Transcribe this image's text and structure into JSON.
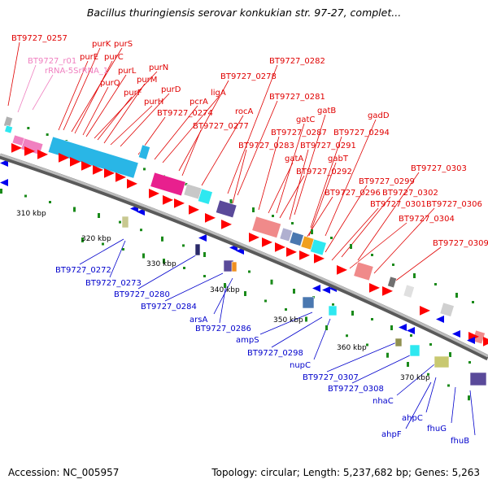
{
  "title": "Bacillus thuringiensis serovar konkukian str. 97-27, complet...",
  "footer": {
    "accession": "Accession: NC_005957",
    "stats": "Topology: circular; Length: 5,237,682 bp; Genes: 5,263"
  },
  "colors": {
    "forward_label": "#e00000",
    "reverse_label": "#0000cc",
    "rna_label": "#f080c0",
    "backbone": "#8c8c8c",
    "tick": "#1a8a1a"
  },
  "scale_labels": [
    "310 kbp",
    "320 kbp",
    "330 kbp",
    "340 kbp",
    "350 kbp",
    "360 kbp",
    "370 kbp"
  ],
  "forward_labels": [
    "BT9727_0257",
    "purK",
    "purS",
    "purE",
    "purC",
    "purL",
    "purN",
    "purQ",
    "purM",
    "purF",
    "purD",
    "purH",
    "ligA",
    "pcrA",
    "BT9727_0274",
    "BT9727_0278",
    "BT9727_0282",
    "rocA",
    "BT9727_0281",
    "BT9727_0277",
    "gatB",
    "gatC",
    "gadD",
    "BT9727_0287",
    "BT9727_0294",
    "BT9727_0283",
    "BT9727_0291",
    "gatA",
    "gabT",
    "BT9727_0292",
    "BT9727_0303",
    "BT9727_0299",
    "BT9727_0296",
    "BT9727_0302",
    "BT9727_0301",
    "BT9727_0306",
    "BT9727_0304",
    "BT9727_0309"
  ],
  "rna_labels": [
    "BT9727_r01",
    "rRNA-5SrRNA_1"
  ],
  "reverse_labels": [
    "BT9727_0272",
    "BT9727_0273",
    "BT9727_0280",
    "BT9727_0284",
    "arsA",
    "BT9727_0286",
    "ampS",
    "BT9727_0298",
    "nupC",
    "BT9727_0307",
    "BT9727_0308",
    "nhaC",
    "ahpC",
    "ahpF",
    "fhuG",
    "fhuB"
  ]
}
